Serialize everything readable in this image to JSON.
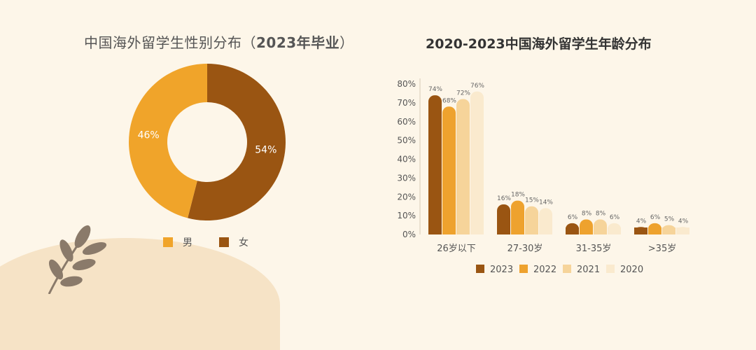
{
  "colors": {
    "background": "#fdf6e9",
    "male": "#f0a42a",
    "female": "#9a5512",
    "s2023": "#9a5512",
    "s2022": "#eea22e",
    "s2021": "#f6d49a",
    "s2020": "#faeace"
  },
  "left_chart": {
    "title_prefix": "中国海外留学生性别分布（",
    "title_year": "2023年毕业",
    "title_suffix": "）"
  },
  "right_chart": {
    "title": "2020-2023中国海外留学生年龄分布"
  },
  "chart_data": [
    {
      "type": "pie",
      "donut": true,
      "labels": [
        "男",
        "女"
      ],
      "values": [
        46,
        54
      ],
      "value_labels": [
        "46%",
        "54%"
      ],
      "colors": [
        "#f0a42a",
        "#9a5512"
      ],
      "legend": "bottom"
    },
    {
      "type": "bar",
      "categories": [
        "26岁以下",
        "27-30岁",
        "31-35岁",
        ">35岁"
      ],
      "series": [
        {
          "name": "2023",
          "values": [
            74,
            16,
            6,
            4
          ],
          "labels": [
            "74%",
            "16%",
            "6%",
            "4%"
          ],
          "color": "#9a5512"
        },
        {
          "name": "2022",
          "values": [
            68,
            18,
            8,
            6
          ],
          "labels": [
            "68%",
            "18%",
            "8%",
            "6%"
          ],
          "color": "#eea22e"
        },
        {
          "name": "2021",
          "values": [
            72,
            15,
            8,
            5
          ],
          "labels": [
            "72%",
            "15%",
            "8%",
            "5%"
          ],
          "color": "#f6d49a"
        },
        {
          "name": "2020",
          "values": [
            76,
            14,
            6,
            4
          ],
          "labels": [
            "76%",
            "14%",
            "6%",
            "4%"
          ],
          "color": "#faeace"
        }
      ],
      "ylim": [
        0,
        80
      ],
      "yticks": [
        "0%",
        "10%",
        "20%",
        "30%",
        "40%",
        "50%",
        "60%",
        "70%",
        "80%"
      ],
      "grid": false,
      "legend": "bottom"
    }
  ]
}
